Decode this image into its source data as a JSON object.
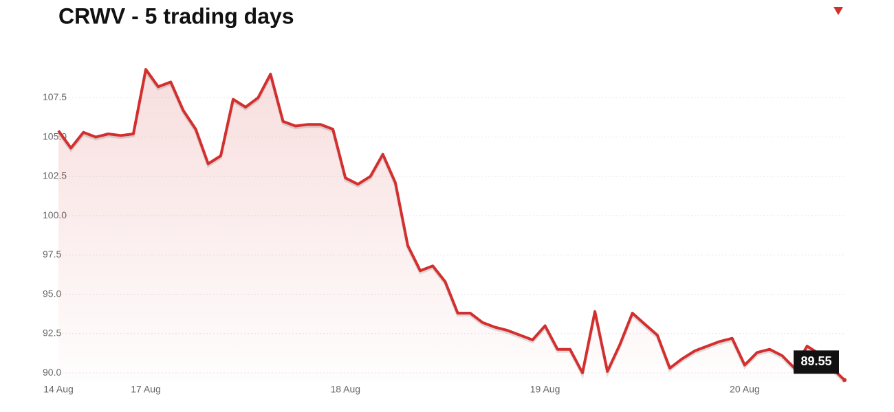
{
  "chart_data": {
    "type": "line",
    "title": "CRWV - 5 trading days",
    "categories": [
      "14 Aug",
      null,
      null,
      null,
      null,
      null,
      null,
      "17 Aug",
      null,
      null,
      null,
      null,
      null,
      null,
      null,
      null,
      null,
      null,
      null,
      null,
      null,
      null,
      null,
      "18 Aug",
      null,
      null,
      null,
      null,
      null,
      null,
      null,
      null,
      null,
      null,
      null,
      null,
      null,
      null,
      null,
      "19 Aug",
      null,
      null,
      null,
      null,
      null,
      null,
      null,
      null,
      null,
      null,
      null,
      null,
      null,
      null,
      null,
      "20 Aug",
      null,
      null,
      null,
      null,
      null,
      null,
      null,
      null
    ],
    "values": [
      105.4,
      104.3,
      105.3,
      105.0,
      105.2,
      105.1,
      105.2,
      109.3,
      108.2,
      108.5,
      106.7,
      105.5,
      103.3,
      103.8,
      107.4,
      106.9,
      107.5,
      109.0,
      106.0,
      105.7,
      105.8,
      105.8,
      105.5,
      102.4,
      102.0,
      102.5,
      103.9,
      102.1,
      98.1,
      96.5,
      96.8,
      95.8,
      93.8,
      93.8,
      93.2,
      92.9,
      92.7,
      92.4,
      92.1,
      93.0,
      91.5,
      91.5,
      90.0,
      93.9,
      90.1,
      91.8,
      93.8,
      93.1,
      92.4,
      90.3,
      90.9,
      91.4,
      91.7,
      92.0,
      92.2,
      90.5,
      91.3,
      91.5,
      91.1,
      90.3,
      91.7,
      91.2,
      90.3,
      89.55
    ],
    "color": "#d32f2f",
    "ylim": [
      89.5,
      109.5
    ],
    "yticks": [
      {
        "value": 90,
        "label": "90.0"
      },
      {
        "value": 92.5,
        "label": "92.5"
      },
      {
        "value": 95,
        "label": "95.0"
      },
      {
        "value": 97.5,
        "label": "97.5"
      },
      {
        "value": 100,
        "label": "100.0"
      },
      {
        "value": 102.5,
        "label": "102.5"
      },
      {
        "value": 105,
        "label": "105.0"
      },
      {
        "value": 107.5,
        "label": "107.5"
      }
    ],
    "grid": true
  }
}
